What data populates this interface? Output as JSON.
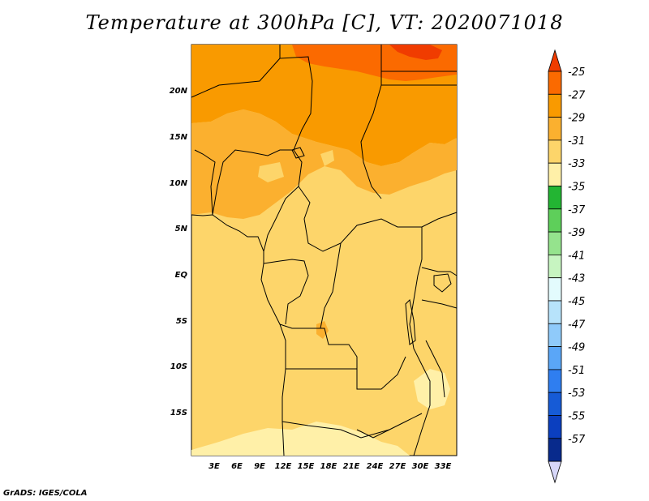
{
  "title": "Temperature at 300hPa [C], VT: 2020071018",
  "footer": "GrADS: IGES/COLA",
  "map": {
    "region": "Central Africa",
    "lon_labels": [
      "3E",
      "6E",
      "9E",
      "12E",
      "15E",
      "18E",
      "21E",
      "24E",
      "27E",
      "30E",
      "33E"
    ],
    "lat_labels": [
      "20N",
      "15N",
      "10N",
      "5N",
      "EQ",
      "5S",
      "10S",
      "15S"
    ]
  },
  "colorbar": {
    "levels": [
      "-25",
      "-27",
      "-29",
      "-31",
      "-33",
      "-35",
      "-37",
      "-39",
      "-41",
      "-43",
      "-45",
      "-47",
      "-49",
      "-51",
      "-53",
      "-55",
      "-57"
    ],
    "colors": [
      "#f03c00",
      "#fb6a00",
      "#f99a00",
      "#fbb02f",
      "#fdd56a",
      "#fff0a8",
      "#23b533",
      "#5ecf5a",
      "#95e38d",
      "#c7f5c1",
      "#e3fbfd",
      "#b7e3fb",
      "#8fcafa",
      "#5aa6f7",
      "#2f7ef0",
      "#165bd6",
      "#0b3fbf",
      "#082a8c",
      "#d7d7f9"
    ]
  },
  "colors": {
    "land_outline": "#000000",
    "background": "#ffffff"
  }
}
